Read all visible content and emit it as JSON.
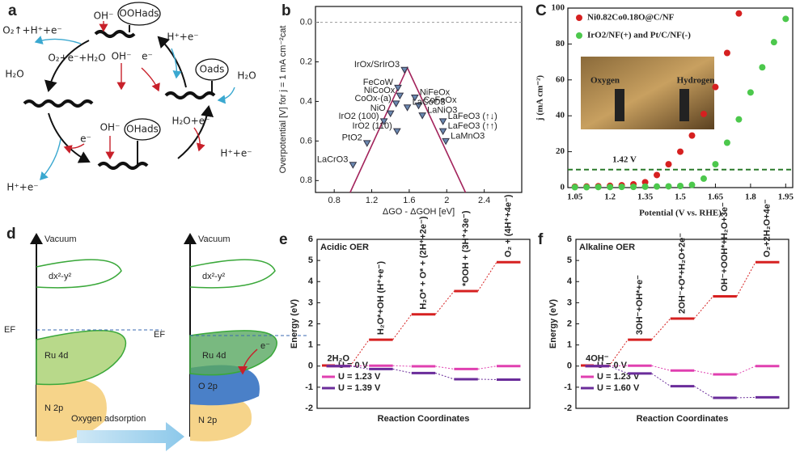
{
  "panels": {
    "a": {
      "label": "a",
      "texts": [
        "OOHads",
        "OH⁻",
        "O₂↑+H⁺+e⁻",
        "O₂+e⁻+H₂O",
        "H₂O",
        "OH⁻",
        "e⁻",
        "H⁺+e⁻",
        "Oads",
        "H₂O",
        "H₂O+e⁻",
        "H⁺+e⁻",
        "OHads",
        "OH⁻",
        "e⁻",
        "H⁺+e⁻"
      ]
    },
    "d": {
      "label": "d",
      "texts": [
        "Vacuum",
        "dx²-y²",
        "EF",
        "Ru 4d",
        "N 2p",
        "Vacuum",
        "dx²-y²",
        "EF",
        "Ru 4d",
        "O 2p",
        "N 2p",
        "e⁻",
        "Oxygen adsorption"
      ]
    }
  },
  "chart_data": [
    {
      "type": "volcano",
      "label": "b",
      "y_axis_label": "Overpotential [V] for j = 1 mA cm⁻²cat",
      "x_axis_label": "ΔGO - ΔGOH [eV]",
      "xlim": [
        0.6,
        2.8
      ],
      "xticks": [
        0.8,
        1.2,
        1.6,
        2.0,
        2.4
      ],
      "ylim": [
        -0.08,
        0.86
      ],
      "y_inverted": true,
      "yticks": [
        {
          "value": 0,
          "label": "0.0"
        },
        0.2,
        0.4,
        0.6,
        0.8
      ],
      "hline": 0,
      "lines": [
        {
          "x": [
            0.97,
            1.58,
            2.2
          ],
          "y": [
            0.86,
            0.23,
            0.86
          ],
          "color": "#a3245c"
        }
      ],
      "marker_color": "#6a88b0",
      "points": [
        {
          "label": "IrOx/SrIrO3",
          "x": 1.55,
          "y": 0.24
        },
        {
          "label": "FeCoW",
          "x": 1.48,
          "y": 0.33
        },
        {
          "label": "NiCoOx",
          "x": 1.5,
          "y": 0.37
        },
        {
          "label": "CoOx-(a)",
          "x": 1.46,
          "y": 0.41
        },
        {
          "label": "NiO",
          "x": 1.4,
          "y": 0.46
        },
        {
          "label": "IrO2 (100)",
          "x": 1.33,
          "y": 0.5
        },
        {
          "label": "IrO2 (110)",
          "x": 1.47,
          "y": 0.55
        },
        {
          "label": "PtO2",
          "x": 1.15,
          "y": 0.61
        },
        {
          "label": "LaCrO3",
          "x": 1.0,
          "y": 0.72
        },
        {
          "label": "NiFeOx",
          "x": 1.66,
          "y": 0.38
        },
        {
          "label": "CoFeOx",
          "x": 1.7,
          "y": 0.42
        },
        {
          "label": "LaNiO3",
          "x": 1.74,
          "y": 0.47
        },
        {
          "label": "LaCoO3",
          "x": 1.58,
          "y": 0.43
        },
        {
          "label": "LaFeO3 (↑↓)",
          "x": 1.96,
          "y": 0.5
        },
        {
          "label": "LaFeO3 (↑↑)",
          "x": 1.96,
          "y": 0.55
        },
        {
          "label": "LaMnO3",
          "x": 1.99,
          "y": 0.6
        }
      ]
    },
    {
      "type": "scatter",
      "label": "C",
      "y_axis_label": "j (mA cm⁻²)",
      "x_axis_label": "Potential (V vs. RHE)",
      "xlim": [
        1.02,
        1.98
      ],
      "xticks": [
        1.05,
        1.2,
        1.35,
        1.5,
        1.65,
        1.8,
        1.95
      ],
      "ylim": [
        0,
        100
      ],
      "yticks": [
        0,
        20,
        40,
        60,
        80,
        100
      ],
      "hline": 10,
      "hline_color": "#2a7a2a",
      "annotation": "1.42 V",
      "inset_labels": [
        "Oxygen",
        "Hydrogen"
      ],
      "series": [
        {
          "name": "Ni0.82Co0.18O@C/NF",
          "color": "#d62020",
          "x": [
            1.05,
            1.1,
            1.15,
            1.2,
            1.25,
            1.3,
            1.35,
            1.4,
            1.45,
            1.5,
            1.55,
            1.6,
            1.65,
            1.7,
            1.75
          ],
          "values": [
            0.5,
            0.6,
            0.8,
            1,
            1.3,
            1.8,
            3,
            7,
            13,
            20,
            29,
            41,
            56,
            75,
            97
          ]
        },
        {
          "name": "IrO2/NF(+) and Pt/C/NF(-)",
          "color": "#4cc84c",
          "x": [
            1.05,
            1.1,
            1.15,
            1.2,
            1.25,
            1.3,
            1.35,
            1.4,
            1.45,
            1.5,
            1.55,
            1.6,
            1.65,
            1.7,
            1.75,
            1.8,
            1.85,
            1.9,
            1.95
          ],
          "values": [
            0.2,
            0.2,
            0.3,
            0.3,
            0.4,
            0.4,
            0.5,
            0.6,
            0.7,
            0.9,
            1.5,
            5,
            13,
            25,
            38,
            53,
            67,
            81,
            94
          ]
        }
      ]
    },
    {
      "type": "energy",
      "label": "e",
      "title": "Acidic OER",
      "y_axis_label": "Energy (eV)",
      "x_axis_label": "Reaction Coordinates",
      "ylim": [
        -2,
        6
      ],
      "yticks": [
        -2,
        -1,
        0,
        1,
        2,
        3,
        4,
        5,
        6
      ],
      "categories": [
        "2H₂O",
        "H₂O*+OH (H⁺+e⁻)",
        "H₂O* + O* + (2H⁺+2e⁻)",
        "*OOH + (3H⁺+3e⁻)",
        "O₂ + (4H⁺+4e⁻)"
      ],
      "series": [
        {
          "name": "U = 0 V",
          "color": "#d62020",
          "values": [
            0,
            1.25,
            2.45,
            3.55,
            4.92
          ]
        },
        {
          "name": "U = 1.23 V",
          "color": "#e040b0",
          "values": [
            0,
            0.02,
            -0.01,
            -0.14,
            0
          ]
        },
        {
          "name": "U = 1.39 V",
          "color": "#6a2c9a",
          "values": [
            0,
            -0.14,
            -0.33,
            -0.62,
            -0.64
          ]
        }
      ]
    },
    {
      "type": "energy",
      "label": "f",
      "title": "Alkaline OER",
      "y_axis_label": "Energy (eV)",
      "x_axis_label": "Reaction Coordinates",
      "ylim": [
        -2,
        6
      ],
      "yticks": [
        -2,
        -1,
        0,
        1,
        2,
        3,
        4,
        5,
        6
      ],
      "categories": [
        "4OH⁻",
        "3OH⁻+OH*+e⁻",
        "2OH⁻+O*+H₂O+2e⁻",
        "OH⁻+OOH*+H₂O+3e⁻",
        "O₂+2H₂O+4e⁻"
      ],
      "series": [
        {
          "name": "U = 0 V",
          "color": "#d62020",
          "values": [
            0,
            1.25,
            2.25,
            3.3,
            4.92
          ]
        },
        {
          "name": "U = 1.23 V",
          "color": "#e040b0",
          "values": [
            0,
            0.02,
            -0.21,
            -0.39,
            0
          ]
        },
        {
          "name": "U = 1.60 V",
          "color": "#6a2c9a",
          "values": [
            0,
            -0.35,
            -0.95,
            -1.5,
            -1.48
          ]
        }
      ]
    }
  ]
}
